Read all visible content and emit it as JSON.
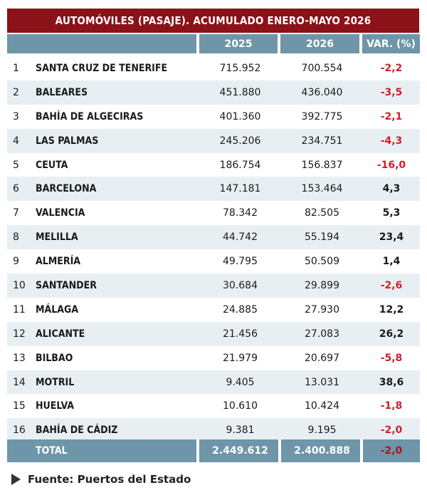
{
  "title": "AUTOMÓVILES (PASAJE). ACUMULADO ENERO-MAYO 2026",
  "headers": [
    "2025",
    "2026",
    "VAR. (%)"
  ],
  "chart_data": {
    "type": "table",
    "title": "AUTOMÓVILES (PASAJE). ACUMULADO ENERO-MAYO 2026",
    "columns": [
      "",
      "",
      "2025",
      "2026",
      "VAR. (%)"
    ],
    "rows": [
      {
        "rank": "1",
        "port": "SANTA CRUZ DE TENERIFE",
        "v2025": "715.952",
        "v2026": "700.554",
        "var": "-2,2"
      },
      {
        "rank": "2",
        "port": "BALEARES",
        "v2025": "451.880",
        "v2026": "436.040",
        "var": "-3,5"
      },
      {
        "rank": "3",
        "port": "BAHÍA DE ALGECIRAS",
        "v2025": "401.360",
        "v2026": "392.775",
        "var": "-2,1"
      },
      {
        "rank": "4",
        "port": "LAS PALMAS",
        "v2025": "245.206",
        "v2026": "234.751",
        "var": "-4,3"
      },
      {
        "rank": "5",
        "port": "CEUTA",
        "v2025": "186.754",
        "v2026": "156.837",
        "var": "-16,0"
      },
      {
        "rank": "6",
        "port": "BARCELONA",
        "v2025": "147.181",
        "v2026": "153.464",
        "var": "4,3"
      },
      {
        "rank": "7",
        "port": "VALENCIA",
        "v2025": "78.342",
        "v2026": "82.505",
        "var": "5,3"
      },
      {
        "rank": "8",
        "port": "MELILLA",
        "v2025": "44.742",
        "v2026": "55.194",
        "var": "23,4"
      },
      {
        "rank": "9",
        "port": "ALMERÍA",
        "v2025": "49.795",
        "v2026": "50.509",
        "var": "1,4"
      },
      {
        "rank": "10",
        "port": "SANTANDER",
        "v2025": "30.684",
        "v2026": "29.899",
        "var": "-2,6"
      },
      {
        "rank": "11",
        "port": "MÁLAGA",
        "v2025": "24.885",
        "v2026": "27.930",
        "var": "12,2"
      },
      {
        "rank": "12",
        "port": "ALICANTE",
        "v2025": "21.456",
        "v2026": "27.083",
        "var": "26,2"
      },
      {
        "rank": "13",
        "port": "BILBAO",
        "v2025": "21.979",
        "v2026": "20.697",
        "var": "-5,8"
      },
      {
        "rank": "14",
        "port": "MOTRIL",
        "v2025": "9.405",
        "v2026": "13.031",
        "var": "38,6"
      },
      {
        "rank": "15",
        "port": "HUELVA",
        "v2025": "10.610",
        "v2026": "10.424",
        "var": "-1,8"
      },
      {
        "rank": "16",
        "port": "BAHÍA DE CÁDIZ",
        "v2025": "9.381",
        "v2026": "9.195",
        "var": "-2,0"
      }
    ],
    "total": {
      "label": "TOTAL",
      "v2025": "2.449.612",
      "v2026": "2.400.888",
      "var": "-2,0"
    }
  },
  "source": "Fuente: Puertos del Estado",
  "colors": {
    "title_bg": "#8b1219",
    "header_bg": "#6f95a8",
    "row_alt": "#e8eff3",
    "negative": "#d0202a"
  }
}
